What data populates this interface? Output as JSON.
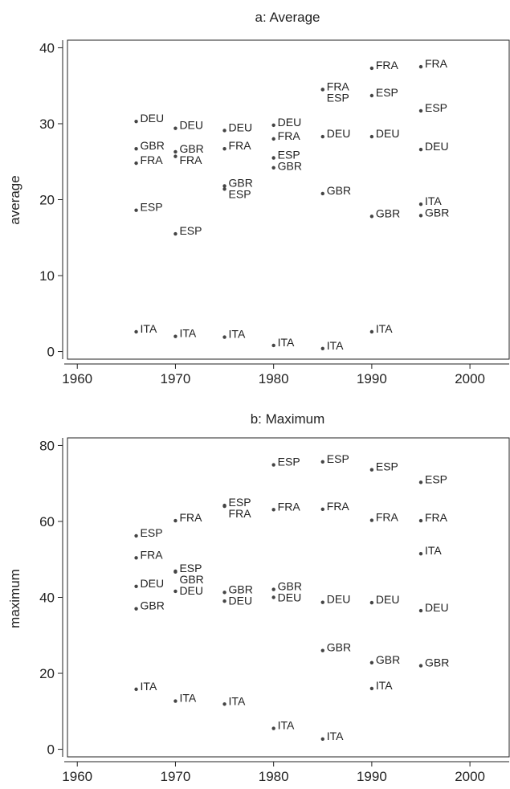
{
  "chart_data": [
    {
      "type": "scatter",
      "title": "a: Average",
      "xlabel": "",
      "ylabel": "average",
      "xlim": [
        1959,
        2004
      ],
      "ylim": [
        -1,
        41
      ],
      "xticks": [
        1960,
        1970,
        1980,
        1990,
        2000
      ],
      "yticks": [
        0,
        10,
        20,
        30,
        40
      ],
      "grid": false,
      "points": [
        {
          "x": 1966,
          "y": 30.3,
          "label": "DEU"
        },
        {
          "x": 1966,
          "y": 26.7,
          "label": "GBR"
        },
        {
          "x": 1966,
          "y": 24.8,
          "label": "FRA"
        },
        {
          "x": 1966,
          "y": 18.6,
          "label": "ESP"
        },
        {
          "x": 1966,
          "y": 2.6,
          "label": "ITA"
        },
        {
          "x": 1970,
          "y": 29.4,
          "label": "DEU"
        },
        {
          "x": 1970,
          "y": 26.3,
          "label": "GBR"
        },
        {
          "x": 1970,
          "y": 25.7,
          "label": "FRA"
        },
        {
          "x": 1970,
          "y": 15.5,
          "label": "ESP"
        },
        {
          "x": 1970,
          "y": 2.0,
          "label": "ITA"
        },
        {
          "x": 1975,
          "y": 29.1,
          "label": "DEU"
        },
        {
          "x": 1975,
          "y": 26.7,
          "label": "FRA"
        },
        {
          "x": 1975,
          "y": 21.8,
          "label": "GBR"
        },
        {
          "x": 1975,
          "y": 21.4,
          "label": "ESP"
        },
        {
          "x": 1975,
          "y": 1.9,
          "label": "ITA"
        },
        {
          "x": 1980,
          "y": 29.8,
          "label": "DEU"
        },
        {
          "x": 1980,
          "y": 28.0,
          "label": "FRA"
        },
        {
          "x": 1980,
          "y": 25.5,
          "label": "ESP"
        },
        {
          "x": 1980,
          "y": 24.2,
          "label": "GBR"
        },
        {
          "x": 1980,
          "y": 0.8,
          "label": "ITA"
        },
        {
          "x": 1985,
          "y": 34.5,
          "label": "FRA"
        },
        {
          "x": 1985,
          "y": 34.5,
          "label": "ESP"
        },
        {
          "x": 1985,
          "y": 28.3,
          "label": "DEU"
        },
        {
          "x": 1985,
          "y": 20.8,
          "label": "GBR"
        },
        {
          "x": 1985,
          "y": 0.4,
          "label": "ITA"
        },
        {
          "x": 1990,
          "y": 37.3,
          "label": "FRA"
        },
        {
          "x": 1990,
          "y": 33.7,
          "label": "ESP"
        },
        {
          "x": 1990,
          "y": 28.3,
          "label": "DEU"
        },
        {
          "x": 1990,
          "y": 17.8,
          "label": "GBR"
        },
        {
          "x": 1990,
          "y": 2.6,
          "label": "ITA"
        },
        {
          "x": 1995,
          "y": 37.5,
          "label": "FRA"
        },
        {
          "x": 1995,
          "y": 31.7,
          "label": "ESP"
        },
        {
          "x": 1995,
          "y": 26.6,
          "label": "DEU"
        },
        {
          "x": 1995,
          "y": 19.4,
          "label": "ITA"
        },
        {
          "x": 1995,
          "y": 17.9,
          "label": "GBR"
        }
      ]
    },
    {
      "type": "scatter",
      "title": "b: Maximum",
      "xlabel": "",
      "ylabel": "maximum",
      "xlim": [
        1959,
        2004
      ],
      "ylim": [
        -2,
        82
      ],
      "xticks": [
        1960,
        1970,
        1980,
        1990,
        2000
      ],
      "yticks": [
        0,
        20,
        40,
        60,
        80
      ],
      "grid": false,
      "points": [
        {
          "x": 1966,
          "y": 56.2,
          "label": "ESP"
        },
        {
          "x": 1966,
          "y": 50.4,
          "label": "FRA"
        },
        {
          "x": 1966,
          "y": 42.9,
          "label": "DEU"
        },
        {
          "x": 1966,
          "y": 37.0,
          "label": "GBR"
        },
        {
          "x": 1966,
          "y": 15.8,
          "label": "ITA"
        },
        {
          "x": 1970,
          "y": 60.2,
          "label": "FRA"
        },
        {
          "x": 1970,
          "y": 46.9,
          "label": "ESP"
        },
        {
          "x": 1970,
          "y": 46.7,
          "label": "GBR"
        },
        {
          "x": 1970,
          "y": 41.6,
          "label": "DEU"
        },
        {
          "x": 1970,
          "y": 12.7,
          "label": "ITA"
        },
        {
          "x": 1975,
          "y": 64.2,
          "label": "ESP"
        },
        {
          "x": 1975,
          "y": 64.0,
          "label": "FRA"
        },
        {
          "x": 1975,
          "y": 41.3,
          "label": "GBR"
        },
        {
          "x": 1975,
          "y": 39.0,
          "label": "DEU"
        },
        {
          "x": 1975,
          "y": 11.9,
          "label": "ITA"
        },
        {
          "x": 1980,
          "y": 74.9,
          "label": "ESP"
        },
        {
          "x": 1980,
          "y": 63.1,
          "label": "FRA"
        },
        {
          "x": 1980,
          "y": 42.1,
          "label": "GBR"
        },
        {
          "x": 1980,
          "y": 40.0,
          "label": "DEU"
        },
        {
          "x": 1980,
          "y": 5.5,
          "label": "ITA"
        },
        {
          "x": 1985,
          "y": 75.7,
          "label": "ESP"
        },
        {
          "x": 1985,
          "y": 63.2,
          "label": "FRA"
        },
        {
          "x": 1985,
          "y": 38.7,
          "label": "DEU"
        },
        {
          "x": 1985,
          "y": 26.0,
          "label": "GBR"
        },
        {
          "x": 1985,
          "y": 2.7,
          "label": "ITA"
        },
        {
          "x": 1990,
          "y": 73.6,
          "label": "ESP"
        },
        {
          "x": 1990,
          "y": 60.3,
          "label": "FRA"
        },
        {
          "x": 1990,
          "y": 38.6,
          "label": "DEU"
        },
        {
          "x": 1990,
          "y": 22.8,
          "label": "GBR"
        },
        {
          "x": 1990,
          "y": 16.0,
          "label": "ITA"
        },
        {
          "x": 1995,
          "y": 70.3,
          "label": "ESP"
        },
        {
          "x": 1995,
          "y": 60.2,
          "label": "FRA"
        },
        {
          "x": 1995,
          "y": 51.5,
          "label": "ITA"
        },
        {
          "x": 1995,
          "y": 36.5,
          "label": "DEU"
        },
        {
          "x": 1995,
          "y": 22.0,
          "label": "GBR"
        }
      ]
    }
  ]
}
